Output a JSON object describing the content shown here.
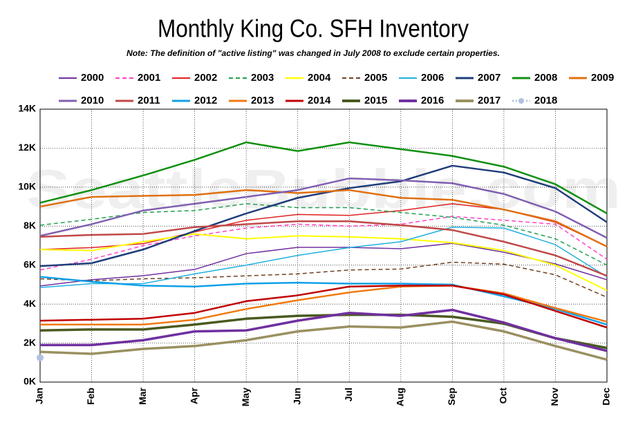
{
  "chart_data": {
    "type": "line",
    "title": "Monthly King Co. SFH Inventory",
    "subtitle": "Note: The definition of \"active listing\" was changed in July 2008 to exclude certain properties.",
    "watermark": "SeattleBubble.com",
    "categories": [
      "Jan",
      "Feb",
      "Mar",
      "Apr",
      "May",
      "Jun",
      "Jul",
      "Aug",
      "Sep",
      "Oct",
      "Nov",
      "Dec"
    ],
    "ylim": [
      0,
      14000
    ],
    "yticks": [
      {
        "value": 0,
        "label": "0K"
      },
      {
        "value": 2000,
        "label": "2K"
      },
      {
        "value": 4000,
        "label": "4K"
      },
      {
        "value": 6000,
        "label": "6K"
      },
      {
        "value": 8000,
        "label": "8K"
      },
      {
        "value": 10000,
        "label": "10K"
      },
      {
        "value": 12000,
        "label": "12K"
      },
      {
        "value": 14000,
        "label": "14K"
      }
    ],
    "grid": true,
    "legend": "top",
    "series": [
      {
        "name": "2000",
        "color": "#7030a0",
        "width": 1.5,
        "values": [
          4930,
          5250,
          5460,
          5780,
          6590,
          6910,
          6910,
          6840,
          7120,
          6660,
          6060,
          5250
        ]
      },
      {
        "name": "2001",
        "color": "#ff40c8",
        "width": 1.5,
        "dashed": true,
        "values": [
          5750,
          6300,
          7000,
          7500,
          7900,
          8100,
          8000,
          8100,
          8500,
          8300,
          8100,
          6300
        ]
      },
      {
        "name": "2002",
        "color": "#e02020",
        "width": 1.5,
        "values": [
          6800,
          6900,
          7100,
          7700,
          8300,
          8600,
          8550,
          8800,
          9150,
          8850,
          8200,
          6950
        ]
      },
      {
        "name": "2003",
        "color": "#20a050",
        "width": 1.5,
        "dashed": true,
        "values": [
          8050,
          8350,
          8700,
          8800,
          9150,
          8950,
          8950,
          8700,
          8450,
          8050,
          7350,
          6000
        ]
      },
      {
        "name": "2004",
        "color": "#ffff00",
        "width": 2,
        "values": [
          6800,
          6750,
          7200,
          7600,
          7350,
          7500,
          7450,
          7350,
          7150,
          6750,
          6000,
          4700
        ]
      },
      {
        "name": "2005",
        "color": "#704020",
        "width": 1.5,
        "dashed": true,
        "values": [
          5300,
          5200,
          5300,
          5350,
          5450,
          5550,
          5750,
          5800,
          6150,
          6050,
          5500,
          4350
        ]
      },
      {
        "name": "2006",
        "color": "#20b0e0",
        "width": 1.5,
        "values": [
          4850,
          5050,
          5050,
          5550,
          6000,
          6500,
          6900,
          7200,
          7950,
          7900,
          7050,
          5400
        ]
      },
      {
        "name": "2007",
        "color": "#1f3d7a",
        "width": 2.5,
        "values": [
          5950,
          6100,
          6800,
          7750,
          8650,
          9450,
          9950,
          10300,
          11100,
          10750,
          9950,
          8200
        ]
      },
      {
        "name": "2008",
        "color": "#109010",
        "width": 2.5,
        "values": [
          9200,
          9850,
          10600,
          11400,
          12300,
          11850,
          12300,
          11950,
          11600,
          11050,
          10150,
          8650
        ]
      },
      {
        "name": "2009",
        "color": "#e07010",
        "width": 2.5,
        "values": [
          9000,
          9500,
          9550,
          9600,
          9850,
          9700,
          9850,
          9450,
          9350,
          8850,
          8250,
          6950
        ]
      },
      {
        "name": "2010",
        "color": "#8060b0",
        "width": 2.5,
        "values": [
          7500,
          8100,
          8800,
          9150,
          9500,
          9850,
          10450,
          10350,
          10200,
          9650,
          8750,
          7400
        ]
      },
      {
        "name": "2011",
        "color": "#c04848",
        "width": 2.5,
        "values": [
          7450,
          7550,
          7600,
          7950,
          8100,
          8250,
          8250,
          8050,
          7800,
          7200,
          6500,
          5450
        ]
      },
      {
        "name": "2012",
        "color": "#10a0e8",
        "width": 2.5,
        "values": [
          5400,
          5150,
          4950,
          4900,
          5050,
          5100,
          5050,
          5050,
          5000,
          4400,
          3750,
          2950
        ]
      },
      {
        "name": "2013",
        "color": "#f07a10",
        "width": 2.5,
        "values": [
          2950,
          2950,
          2950,
          3200,
          3750,
          4200,
          4600,
          4900,
          4950,
          4550,
          3800,
          3100
        ]
      },
      {
        "name": "2014",
        "color": "#c00000",
        "width": 2.5,
        "values": [
          3150,
          3200,
          3250,
          3550,
          4150,
          4450,
          4900,
          4950,
          4950,
          4500,
          3650,
          2800
        ]
      },
      {
        "name": "2015",
        "color": "#4a5a20",
        "width": 3.5,
        "values": [
          2650,
          2700,
          2700,
          2950,
          3250,
          3400,
          3450,
          3450,
          3350,
          3000,
          2250,
          1750
        ]
      },
      {
        "name": "2016",
        "color": "#7030a0",
        "width": 3.5,
        "values": [
          1900,
          1900,
          2150,
          2600,
          2650,
          3150,
          3550,
          3400,
          3700,
          3050,
          2250,
          1600
        ]
      },
      {
        "name": "2017",
        "color": "#9a9060",
        "width": 3.5,
        "values": [
          1550,
          1450,
          1700,
          1850,
          2150,
          2600,
          2850,
          2800,
          3100,
          2600,
          1850,
          1150
        ]
      },
      {
        "name": "2018",
        "color": "#b0c0e0",
        "width": 2.5,
        "dotted": true,
        "marker": true,
        "values": [
          1250,
          null,
          null,
          null,
          null,
          null,
          null,
          null,
          null,
          null,
          null,
          null
        ]
      }
    ]
  }
}
